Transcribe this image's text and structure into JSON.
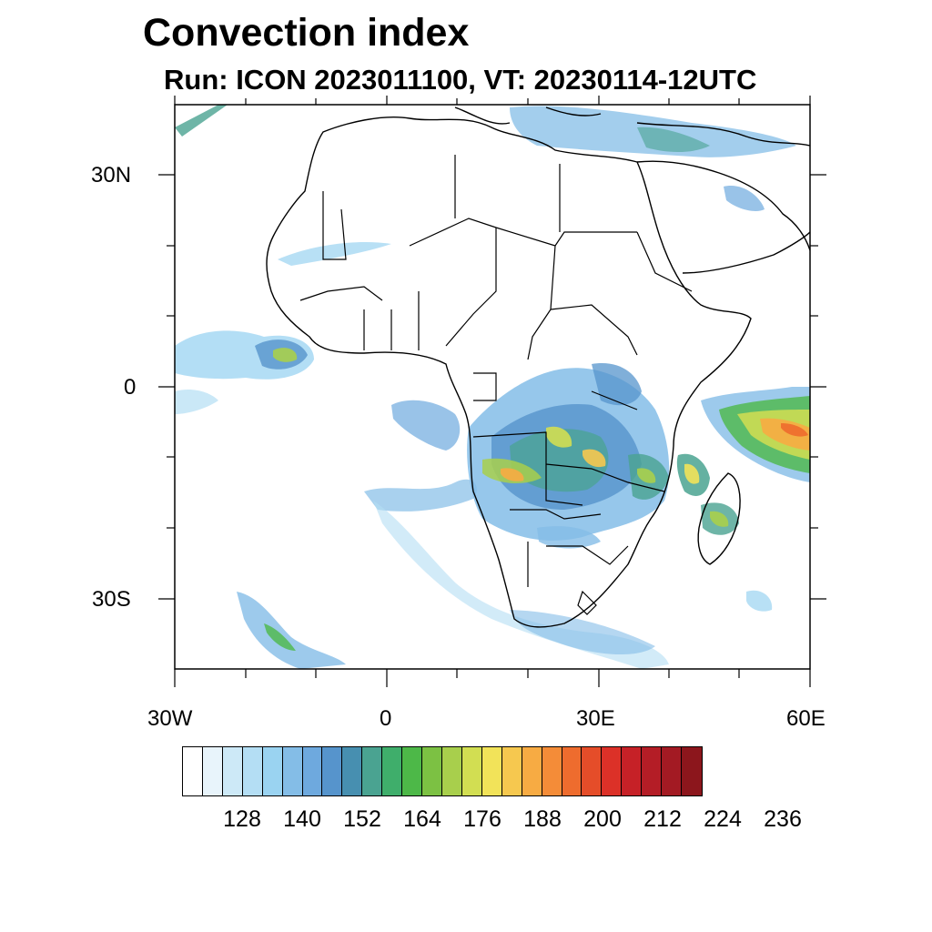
{
  "title": "Convection index",
  "subtitle": "Run: ICON 2023011100,  VT: 20230114-12UTC",
  "map": {
    "region": "Africa",
    "lon_range": [
      -30,
      60
    ],
    "lat_range": [
      -40,
      40
    ],
    "lat_labels": [
      "30N",
      "0",
      "30S"
    ],
    "lon_labels": [
      "30W",
      "0",
      "30E",
      "60E"
    ]
  },
  "colorbar": {
    "colors": [
      "#ffffff",
      "#e8f4fb",
      "#cde9f7",
      "#b4def4",
      "#9ad3f1",
      "#84bde7",
      "#6ea9de",
      "#5694cc",
      "#478fb0",
      "#4aa391",
      "#3fae6b",
      "#4db848",
      "#7cc143",
      "#a8cf4c",
      "#d2de52",
      "#f2e359",
      "#f6c84f",
      "#f7ab43",
      "#f48c38",
      "#ee6c2e",
      "#e54d29",
      "#dc3128",
      "#c62127",
      "#b41d26",
      "#a31a23",
      "#8c161c"
    ],
    "labels": [
      "128",
      "140",
      "152",
      "164",
      "176",
      "188",
      "200",
      "212",
      "224",
      "236"
    ]
  },
  "convection_areas": [
    "central-africa-congo-basin",
    "east-africa-great-lakes",
    "western-indian-ocean",
    "madagascar",
    "gulf-of-guinea-atlantic",
    "south-atlantic-band",
    "mediterranean-middle-east"
  ]
}
